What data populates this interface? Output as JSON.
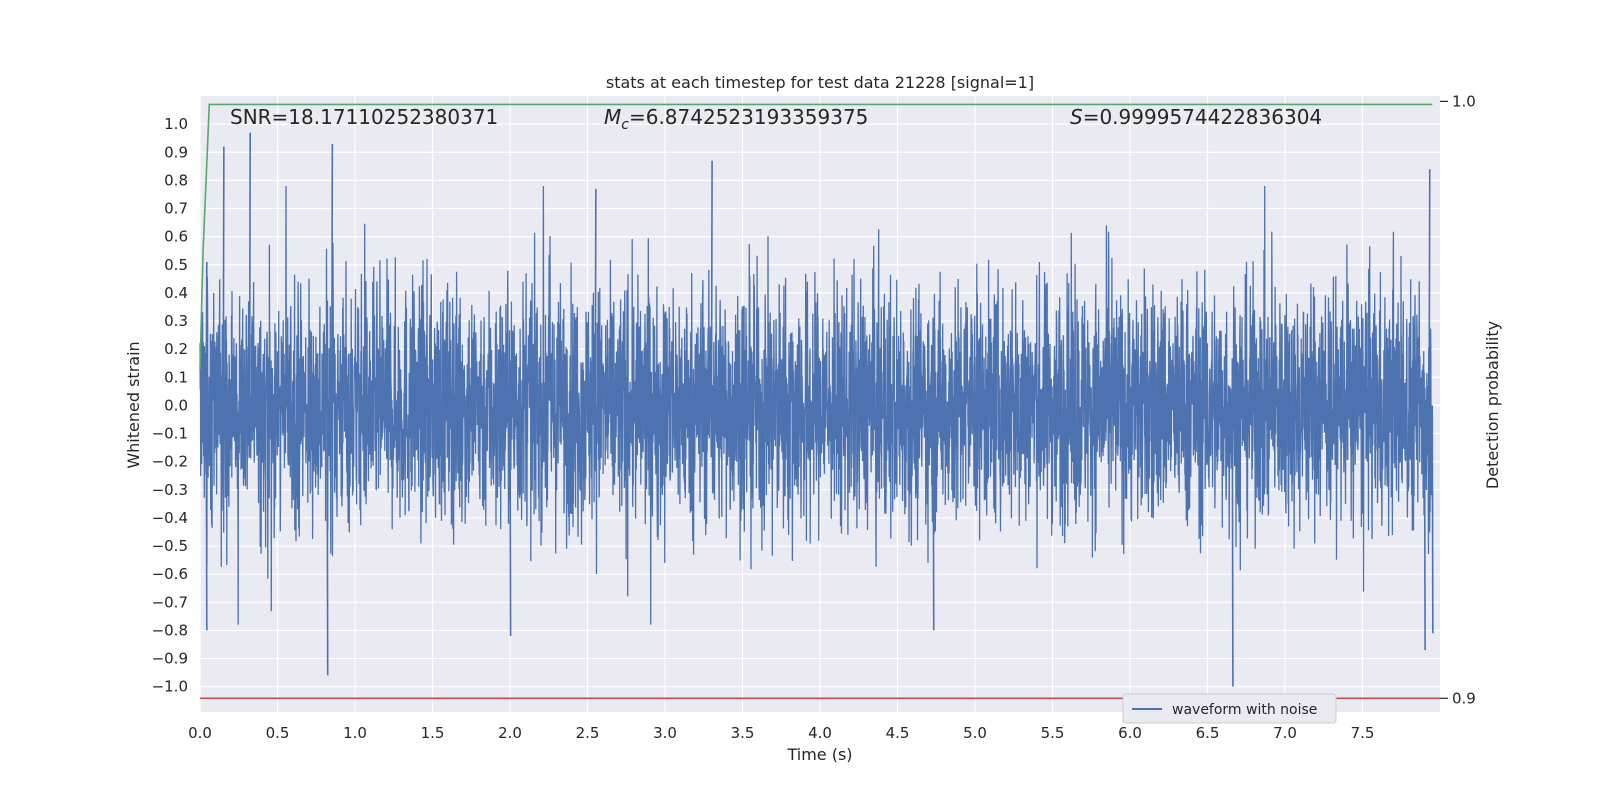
{
  "chart_data": {
    "type": "line",
    "title": "stats at each timestep for test data 21228 [signal=1]",
    "xlabel": "Time (s)",
    "ylabel": "Whitened strain",
    "y2label": "Detection probability",
    "xlim": [
      0.0,
      8.0
    ],
    "ylim": [
      -1.09,
      1.1
    ],
    "y2lim": [
      0.8977,
      1.0009
    ],
    "xticks": [
      "0.0",
      "0.5",
      "1.0",
      "1.5",
      "2.0",
      "2.5",
      "3.0",
      "3.5",
      "4.0",
      "4.5",
      "5.0",
      "5.5",
      "6.0",
      "6.5",
      "7.0",
      "7.5"
    ],
    "yticks": [
      "1.0",
      "0.9",
      "0.8",
      "0.7",
      "0.6",
      "0.5",
      "0.4",
      "0.3",
      "0.2",
      "0.1",
      "0.0",
      "−0.1",
      "−0.2",
      "−0.3",
      "−0.4",
      "−0.5",
      "−0.6",
      "−0.7",
      "−0.8",
      "−0.9",
      "−1.0"
    ],
    "y2ticks": [
      "1.0",
      "0.9"
    ],
    "grid": true,
    "legend": {
      "placement": "lower-center-right",
      "entries": [
        "waveform with noise"
      ]
    },
    "annotations": {
      "snr": "SNR=18.17110252380371",
      "mc_symbol": "M",
      "mc_sub": "c",
      "mc_value": "=6.8742523193359375",
      "s_symbol": "S",
      "s_value": "=0.9999574422836304"
    },
    "series": [
      {
        "name": "waveform with noise",
        "axis": "left",
        "color": "#4c72b0",
        "render": "dense-noise",
        "t_range": [
          0.0,
          8.0
        ],
        "envelope": [
          -0.55,
          0.55
        ],
        "peaks": [
          [
            0.04,
            0.51
          ],
          [
            0.15,
            0.92
          ],
          [
            0.32,
            0.97
          ],
          [
            0.85,
            0.93
          ],
          [
            2.55,
            0.77
          ],
          [
            3.3,
            0.87
          ],
          [
            7.93,
            0.84
          ],
          [
            0.04,
            -0.8
          ],
          [
            0.82,
            -0.96
          ],
          [
            2.0,
            -0.82
          ],
          [
            4.73,
            -0.8
          ],
          [
            6.66,
            -1.0
          ],
          [
            7.9,
            -0.87
          ],
          [
            7.95,
            -0.81
          ]
        ]
      },
      {
        "name": "",
        "axis": "right",
        "color": "#55a868",
        "x": [
          0.0,
          0.02,
          0.06,
          7.95
        ],
        "y": [
          0.955,
          0.975,
          0.9995,
          0.9995
        ]
      },
      {
        "name": "",
        "axis": "right",
        "color": "#c44e52",
        "x": [
          0.0,
          8.0
        ],
        "y": [
          0.9,
          0.9
        ]
      }
    ]
  }
}
